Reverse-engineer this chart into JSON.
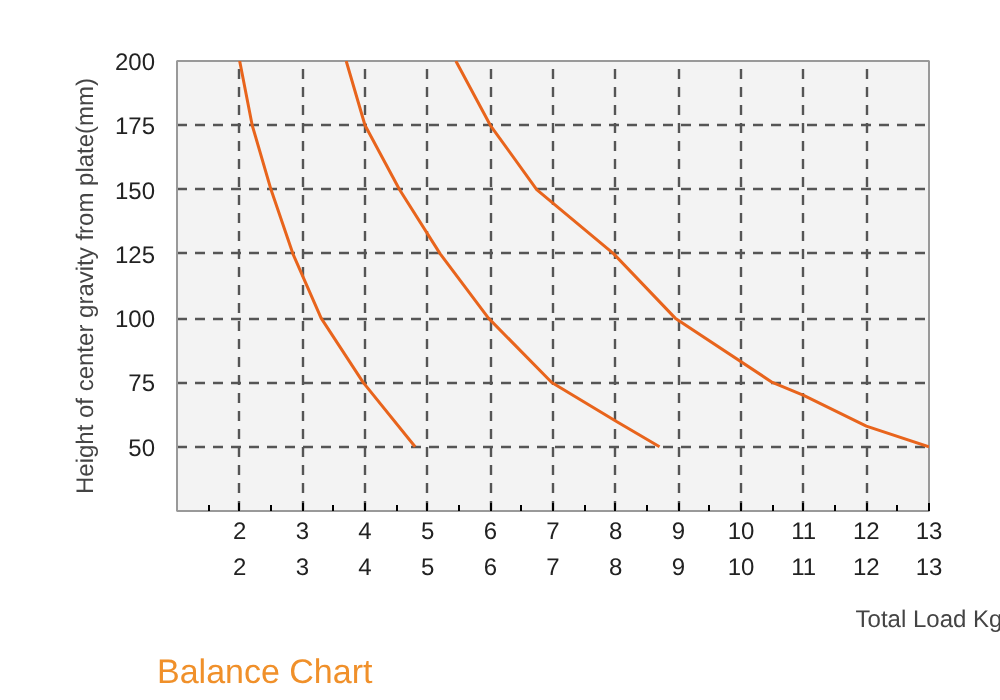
{
  "chart_data": {
    "type": "line",
    "title": "Balance Chart",
    "xlabel": "Total Load Kg",
    "ylabel": "Height of center gravity from plate(mm)",
    "series": [
      {
        "color": "#e8641c",
        "x": [
          2.0,
          2.2,
          2.5,
          2.85,
          3.3,
          3.97,
          4.8
        ],
        "values": [
          200,
          175,
          150,
          125,
          100,
          75,
          50
        ]
      },
      {
        "color": "#e8641c",
        "x": [
          3.7,
          4.0,
          4.55,
          5.2,
          5.97,
          6.98,
          8.0,
          8.7
        ],
        "values": [
          200,
          175,
          150,
          125,
          100,
          75,
          60,
          50
        ]
      },
      {
        "color": "#e8641c",
        "x": [
          5.45,
          6.0,
          6.74,
          7.97,
          8.95,
          10.5,
          11.0,
          12.0,
          13.0
        ],
        "values": [
          200,
          175,
          150,
          125,
          100,
          75,
          70,
          58,
          50
        ]
      }
    ],
    "xlim": [
      1,
      13
    ],
    "xticks": [
      2,
      3,
      4,
      5,
      6,
      7,
      8,
      9,
      10,
      11,
      12,
      13
    ],
    "x2lim": [
      1,
      13
    ],
    "x2ticks": [
      2,
      3,
      4,
      5,
      6,
      7,
      8,
      9,
      10,
      11,
      12,
      13
    ],
    "ylim": [
      25,
      200
    ],
    "yticks": [
      50,
      75,
      100,
      125,
      150,
      175,
      200
    ],
    "grid": true,
    "line_style": "solid"
  }
}
